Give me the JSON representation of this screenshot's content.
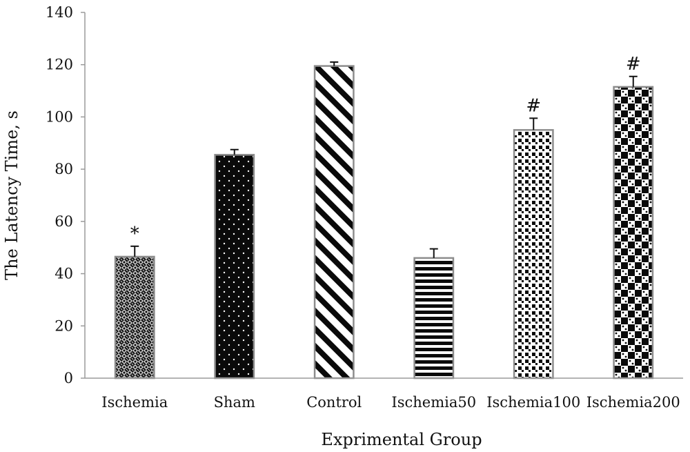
{
  "chart_data": {
    "type": "bar",
    "title": "",
    "xlabel": "Exprimental Group",
    "ylabel": "The Latency Time, s",
    "ylim": [
      0,
      140
    ],
    "yticks": [
      0,
      20,
      40,
      60,
      80,
      100,
      120,
      140
    ],
    "grid": false,
    "categories": [
      "Ischemia",
      "Sham",
      "Control",
      "Ischemia50",
      "Ischemia100",
      "Ischemia200"
    ],
    "values": [
      46.5,
      85.5,
      119.5,
      46,
      95,
      111.5
    ],
    "errors": [
      4,
      2,
      1.5,
      3.5,
      4.5,
      4
    ],
    "annotations": [
      "*",
      "",
      "",
      "",
      "#",
      "#"
    ],
    "patterns": [
      "crosshatch-dots",
      "black-dots",
      "diagonal-stripes",
      "horizontal-stripes",
      "squares-on-white",
      "checkerboard"
    ]
  }
}
